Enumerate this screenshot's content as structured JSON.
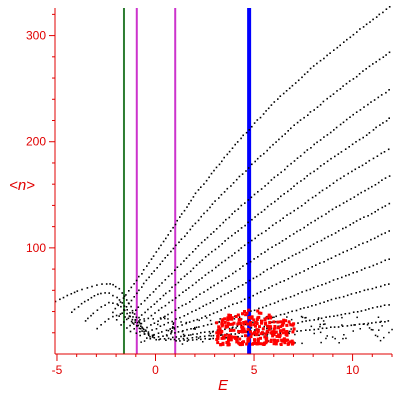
{
  "chart_data": {
    "type": "scatter",
    "xlabel": "E",
    "ylabel": "<n>",
    "xlim": [
      -5.1,
      12
    ],
    "ylim": [
      0,
      326
    ],
    "x_ticks": [
      -5,
      0,
      5,
      10
    ],
    "x_tick_labels": [
      "-5",
      "0",
      "5",
      "10"
    ],
    "y_ticks": [
      100,
      200,
      300
    ],
    "y_tick_labels": [
      "100",
      "200",
      "300"
    ],
    "grid": false,
    "legend": "none",
    "colors": {
      "axis": "#e00000",
      "series_black": "#000000",
      "series_red": "#ff0000",
      "line_green": "#2e7d32",
      "line_magenta": "#cc33cc",
      "line_blue": "#0000ff"
    },
    "vertical_lines": [
      {
        "x": -1.6,
        "color": "#2e7d32",
        "width": 2
      },
      {
        "x": -0.95,
        "color": "#cc33cc",
        "width": 2
      },
      {
        "x": 1.0,
        "color": "#cc33cc",
        "width": 2
      },
      {
        "x": 4.75,
        "color": "#0000ff",
        "width": 4
      }
    ],
    "series": [
      {
        "color": "#000000",
        "description_values": "dotted curves",
        "curves": [
          {
            "points": [
              [
                -2.2,
                40
              ],
              [
                -1.0,
                70
              ],
              [
                0.5,
                110
              ],
              [
                2,
                152
              ],
              [
                4,
                198
              ],
              [
                6,
                238
              ],
              [
                8,
                272
              ],
              [
                10,
                302
              ],
              [
                12,
                330
              ]
            ]
          },
          {
            "points": [
              [
                -2.0,
                33
              ],
              [
                -0.5,
                70
              ],
              [
                1,
                103
              ],
              [
                3,
                145
              ],
              [
                5,
                182
              ],
              [
                7,
                216
              ],
              [
                9,
                246
              ],
              [
                11,
                274
              ],
              [
                12,
                287
              ]
            ]
          },
          {
            "points": [
              [
                -1.8,
                28
              ],
              [
                0,
                62
              ],
              [
                2,
                100
              ],
              [
                4,
                135
              ],
              [
                6,
                167
              ],
              [
                8,
                198
              ],
              [
                10,
                226
              ],
              [
                12,
                252
              ]
            ]
          },
          {
            "points": [
              [
                -1.5,
                25
              ],
              [
                0.5,
                58
              ],
              [
                2.5,
                92
              ],
              [
                4.5,
                122
              ],
              [
                6.5,
                152
              ],
              [
                8.5,
                180
              ],
              [
                10.5,
                205
              ],
              [
                12,
                225
              ]
            ]
          },
          {
            "points": [
              [
                -1.3,
                22
              ],
              [
                1,
                54
              ],
              [
                3,
                82
              ],
              [
                5,
                110
              ],
              [
                7,
                136
              ],
              [
                9,
                162
              ],
              [
                11,
                185
              ],
              [
                12,
                196
              ]
            ]
          },
          {
            "points": [
              [
                -1.0,
                20
              ],
              [
                1.5,
                48
              ],
              [
                3.5,
                72
              ],
              [
                5.5,
                97
              ],
              [
                7.5,
                120
              ],
              [
                9.5,
                143
              ],
              [
                12,
                170
              ]
            ]
          },
          {
            "points": [
              [
                -0.8,
                18
              ],
              [
                2,
                42
              ],
              [
                4,
                62
              ],
              [
                6,
                84
              ],
              [
                8,
                104
              ],
              [
                10,
                124
              ],
              [
                12,
                144
              ]
            ]
          },
          {
            "points": [
              [
                -0.5,
                16
              ],
              [
                2.5,
                36
              ],
              [
                4.5,
                52
              ],
              [
                6.5,
                70
              ],
              [
                8.5,
                88
              ],
              [
                10.5,
                105
              ],
              [
                12,
                118
              ]
            ]
          },
          {
            "points": [
              [
                -0.3,
                15
              ],
              [
                3,
                30
              ],
              [
                5,
                42
              ],
              [
                7,
                56
              ],
              [
                9,
                70
              ],
              [
                11,
                84
              ],
              [
                12,
                92
              ]
            ]
          },
          {
            "points": [
              [
                0,
                14
              ],
              [
                3.5,
                24
              ],
              [
                5.5,
                33
              ],
              [
                7.5,
                44
              ],
              [
                9.5,
                55
              ],
              [
                12,
                68
              ]
            ]
          },
          {
            "points": [
              [
                0.5,
                14
              ],
              [
                4,
                20
              ],
              [
                6,
                26
              ],
              [
                8,
                33
              ],
              [
                10,
                40
              ],
              [
                12,
                48
              ]
            ]
          },
          {
            "points": [
              [
                1,
                13
              ],
              [
                5,
                18
              ],
              [
                8,
                24
              ],
              [
                12,
                32
              ]
            ]
          },
          {
            "points": [
              [
                -5.1,
                50
              ],
              [
                -4.5,
                56
              ],
              [
                -4,
                60
              ],
              [
                -3.5,
                63
              ],
              [
                -3,
                66
              ],
              [
                -2.5,
                67
              ],
              [
                -2.2,
                66
              ],
              [
                -1.9,
                62
              ],
              [
                -1.6,
                55
              ],
              [
                -1.3,
                45
              ],
              [
                -1.0,
                35
              ],
              [
                -0.7,
                26
              ],
              [
                -0.4,
                20
              ],
              [
                0,
                16
              ]
            ]
          },
          {
            "points": [
              [
                -4.3,
                40
              ],
              [
                -3.8,
                48
              ],
              [
                -3.3,
                54
              ],
              [
                -2.8,
                58
              ],
              [
                -2.4,
                58
              ],
              [
                -2.0,
                54
              ],
              [
                -1.6,
                46
              ],
              [
                -1.2,
                36
              ],
              [
                -0.8,
                27
              ],
              [
                -0.4,
                20
              ],
              [
                0,
                16
              ]
            ]
          },
          {
            "points": [
              [
                -3.6,
                32
              ],
              [
                -3.2,
                39
              ],
              [
                -2.8,
                45
              ],
              [
                -2.4,
                49
              ],
              [
                -2.0,
                48
              ],
              [
                -1.6,
                42
              ],
              [
                -1.2,
                33
              ],
              [
                -0.8,
                25
              ],
              [
                -0.4,
                19
              ],
              [
                0,
                15
              ]
            ]
          },
          {
            "points": [
              [
                -3.0,
                25
              ],
              [
                -2.6,
                31
              ],
              [
                -2.2,
                36
              ],
              [
                -1.8,
                38
              ],
              [
                -1.4,
                34
              ],
              [
                -1.0,
                27
              ],
              [
                -0.6,
                20
              ],
              [
                -0.2,
                16
              ]
            ]
          }
        ]
      },
      {
        "color": "#ff0000",
        "cluster": {
          "x_range": [
            3.0,
            7.0
          ],
          "y_range": [
            10,
            45
          ],
          "count": 260
        }
      }
    ]
  }
}
